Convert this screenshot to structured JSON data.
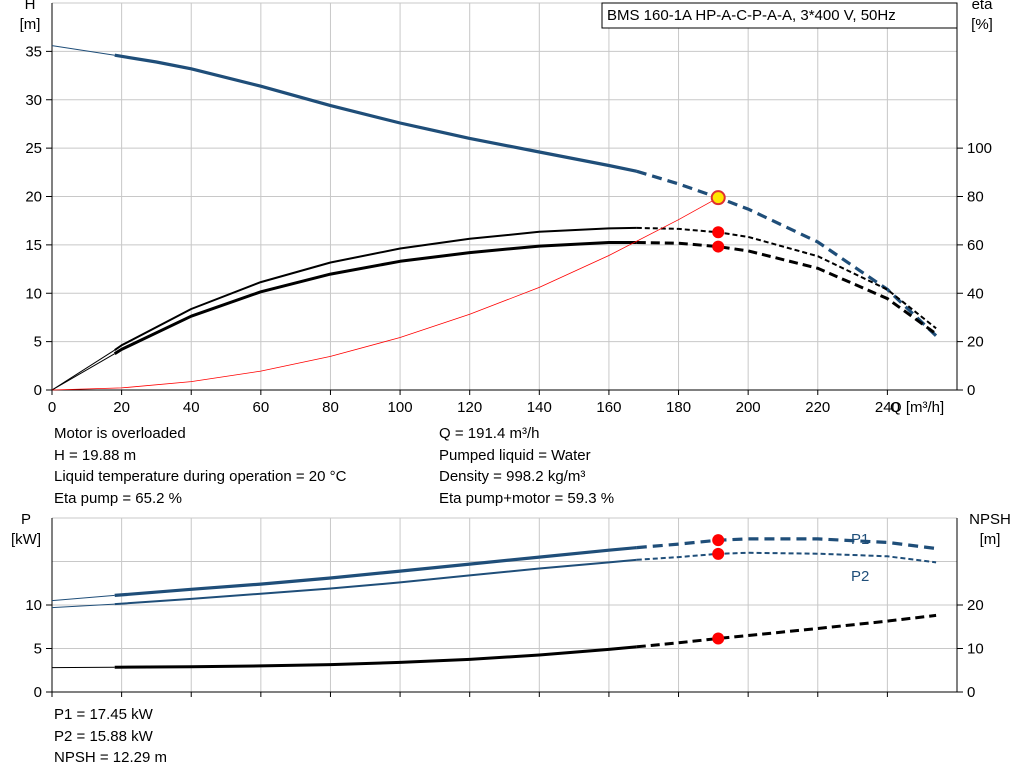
{
  "header": {
    "title": "BMS 160-1A HP-A-C-P-A-A, 3*400 V, 50Hz"
  },
  "chart_data": [
    {
      "type": "line",
      "name": "pump-curve-chart",
      "x_axis": {
        "label": "Q [m³/h]",
        "range": [
          0,
          260
        ],
        "ticks": [
          0,
          20,
          40,
          60,
          80,
          100,
          120,
          140,
          160,
          180,
          200,
          220,
          240
        ]
      },
      "y_left": {
        "label_line1": "H",
        "label_line2": "[m]",
        "range": [
          0,
          40
        ],
        "ticks": [
          0,
          5,
          10,
          15,
          20,
          25,
          30,
          35
        ]
      },
      "y_right": {
        "label_line1": "eta",
        "label_line2": "[%]",
        "range": [
          0,
          160
        ],
        "ticks": [
          0,
          20,
          40,
          60,
          80,
          100
        ]
      },
      "grid": true,
      "series": [
        {
          "id": "H",
          "axis": "left",
          "color": "#1f4e79",
          "x": [
            0,
            18,
            30,
            40,
            60,
            80,
            100,
            120,
            140,
            160,
            168,
            180,
            191.4,
            200,
            220,
            240,
            254
          ],
          "y": [
            35.6,
            34.6,
            33.9,
            33.2,
            31.4,
            29.4,
            27.6,
            26.0,
            24.6,
            23.2,
            22.6,
            21.3,
            19.88,
            18.7,
            15.3,
            10.4,
            5.6
          ],
          "solid_until": 168
        },
        {
          "id": "eta-pump",
          "axis": "right",
          "color": "#000000",
          "x": [
            0,
            18,
            20,
            40,
            60,
            80,
            100,
            120,
            140,
            160,
            168,
            180,
            191.4,
            200,
            220,
            240,
            254
          ],
          "y": [
            0,
            16.5,
            18.5,
            33.5,
            44.6,
            52.7,
            58.5,
            62.5,
            65.4,
            66.8,
            67.0,
            66.6,
            65.2,
            63.3,
            55.3,
            41.5,
            25.5
          ],
          "solid_until": 168
        },
        {
          "id": "eta-pump-motor",
          "axis": "right",
          "color": "#000000",
          "x": [
            0,
            18,
            20,
            40,
            60,
            80,
            100,
            120,
            140,
            160,
            168,
            180,
            191.4,
            200,
            220,
            240,
            254
          ],
          "y": [
            0,
            15.0,
            16.8,
            30.5,
            40.6,
            47.9,
            53.2,
            56.8,
            59.5,
            61.0,
            61.0,
            60.7,
            59.3,
            57.5,
            50.3,
            37.8,
            23.2
          ],
          "solid_until": 168
        },
        {
          "id": "system-curve",
          "axis": "left",
          "color": "#ff0000",
          "x": [
            0,
            20,
            40,
            60,
            80,
            100,
            120,
            140,
            160,
            180,
            191.4
          ],
          "y": [
            0,
            0.22,
            0.87,
            1.95,
            3.47,
            5.43,
            7.82,
            10.6,
            13.9,
            17.6,
            19.88
          ]
        }
      ],
      "duty_point": {
        "q": 191.4,
        "h": 19.88,
        "eta_pump": 65.2,
        "eta_pump_motor": 59.3
      }
    },
    {
      "type": "line",
      "name": "power-npsh-chart",
      "x_axis": {
        "range": [
          0,
          260
        ]
      },
      "y_left": {
        "label_line1": "P",
        "label_line2": "[kW]",
        "range": [
          0,
          20
        ],
        "ticks": [
          0,
          5,
          10
        ]
      },
      "y_right": {
        "label_line1": "NPSH",
        "label_line2": "[m]",
        "range": [
          0,
          40
        ],
        "ticks": [
          0,
          10,
          20
        ]
      },
      "grid": true,
      "series": [
        {
          "id": "P1",
          "name": "P1",
          "axis": "left",
          "color": "#1f4e79",
          "x": [
            0,
            18,
            40,
            60,
            80,
            100,
            120,
            140,
            160,
            168,
            180,
            191.4,
            200,
            220,
            240,
            254
          ],
          "y": [
            10.5,
            11.1,
            11.8,
            12.4,
            13.1,
            13.9,
            14.7,
            15.5,
            16.3,
            16.6,
            17.0,
            17.45,
            17.6,
            17.6,
            17.2,
            16.5
          ],
          "solid_until": 168
        },
        {
          "id": "P2",
          "name": "P2",
          "axis": "left",
          "color": "#1f4e79",
          "x": [
            0,
            18,
            40,
            60,
            80,
            100,
            120,
            140,
            160,
            168,
            180,
            191.4,
            200,
            220,
            240,
            254
          ],
          "y": [
            9.7,
            10.1,
            10.7,
            11.3,
            11.9,
            12.6,
            13.4,
            14.2,
            14.9,
            15.2,
            15.5,
            15.88,
            16.0,
            15.9,
            15.6,
            14.9
          ],
          "solid_until": 168
        },
        {
          "id": "NPSH",
          "axis": "right",
          "color": "#000000",
          "x": [
            0,
            18,
            40,
            60,
            80,
            100,
            120,
            140,
            160,
            168,
            180,
            191.4,
            200,
            220,
            240,
            254
          ],
          "y": [
            5.6,
            5.7,
            5.8,
            6.0,
            6.3,
            6.8,
            7.5,
            8.5,
            9.8,
            10.4,
            11.3,
            12.29,
            13.0,
            14.6,
            16.3,
            17.6
          ],
          "solid_until": 168
        }
      ],
      "duty_point": {
        "q": 191.4,
        "p1": 17.45,
        "p2": 15.88,
        "npsh": 12.29
      }
    }
  ],
  "info_top_left": [
    "Motor is overloaded",
    "H = 19.88 m",
    "Liquid temperature during operation = 20 °C",
    "Eta pump = 65.2 %"
  ],
  "info_top_right": [
    "Q = 191.4 m³/h",
    "Pumped liquid = Water",
    "Density = 998.2 kg/m³",
    "Eta pump+motor = 59.3 %"
  ],
  "info_bottom": [
    "P1 = 17.45 kW",
    "P2 = 15.88 kW",
    "NPSH = 12.29 m"
  ],
  "colors": {
    "curve_blue": "#1f4e79",
    "system_red": "#ff0000",
    "marker_red": "#ff0000",
    "duty_yellow": "#ffe600",
    "grid": "#c8c8c8"
  }
}
